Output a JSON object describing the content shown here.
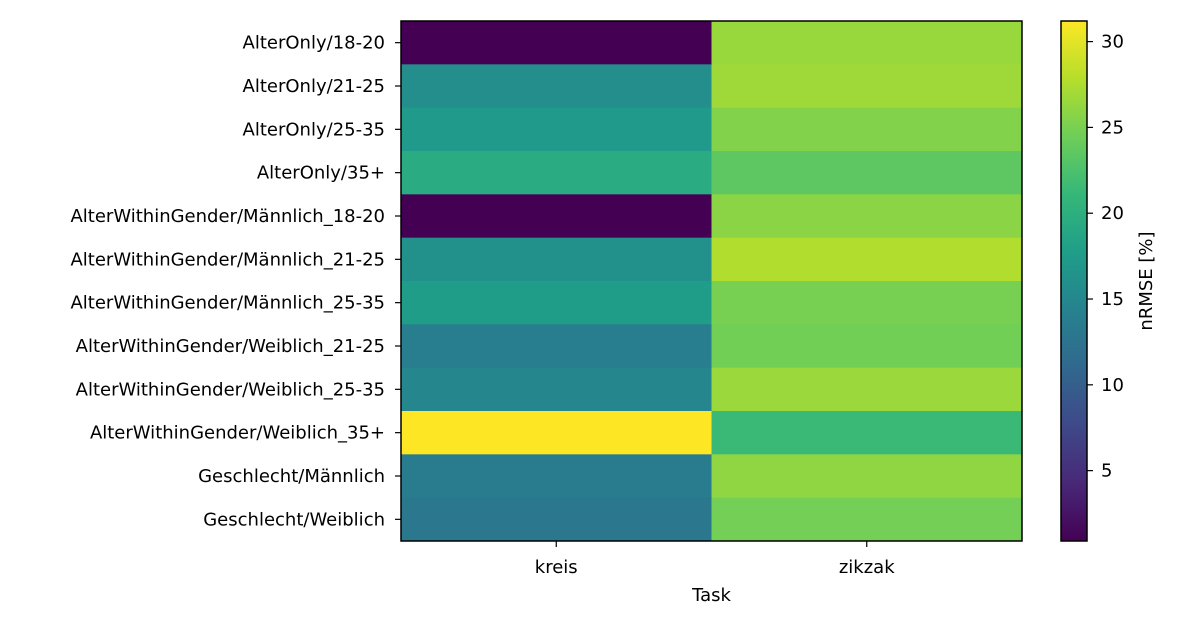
{
  "chart_data": {
    "type": "heatmap",
    "xlabel": "Task",
    "ylabel": "",
    "x": [
      "kreis",
      "zikzak"
    ],
    "y": [
      "AlterOnly/18-20",
      "AlterOnly/21-25",
      "AlterOnly/25-35",
      "AlterOnly/35+",
      "AlterWithinGender/Männlich_18-20",
      "AlterWithinGender/Männlich_21-25",
      "AlterWithinGender/Männlich_25-35",
      "AlterWithinGender/Weiblich_21-25",
      "AlterWithinGender/Weiblich_25-35",
      "AlterWithinGender/Weiblich_35+",
      "Geschlecht/Männlich",
      "Geschlecht/Weiblich"
    ],
    "values": [
      [
        0.9,
        26.5
      ],
      [
        15.8,
        26.8
      ],
      [
        17.3,
        25.4
      ],
      [
        19.5,
        23.5
      ],
      [
        0.9,
        25.8
      ],
      [
        16.2,
        27.6
      ],
      [
        17.6,
        24.9
      ],
      [
        13.9,
        24.6
      ],
      [
        15.0,
        26.6
      ],
      [
        31.2,
        21.4
      ],
      [
        13.4,
        26.1
      ],
      [
        13.0,
        24.7
      ]
    ],
    "colormap": "viridis",
    "colorbar": {
      "label": "nRMSE [%]",
      "range": [
        0.9,
        31.2
      ],
      "ticks": [
        5,
        10,
        15,
        20,
        25,
        30
      ]
    },
    "grid": false
  }
}
